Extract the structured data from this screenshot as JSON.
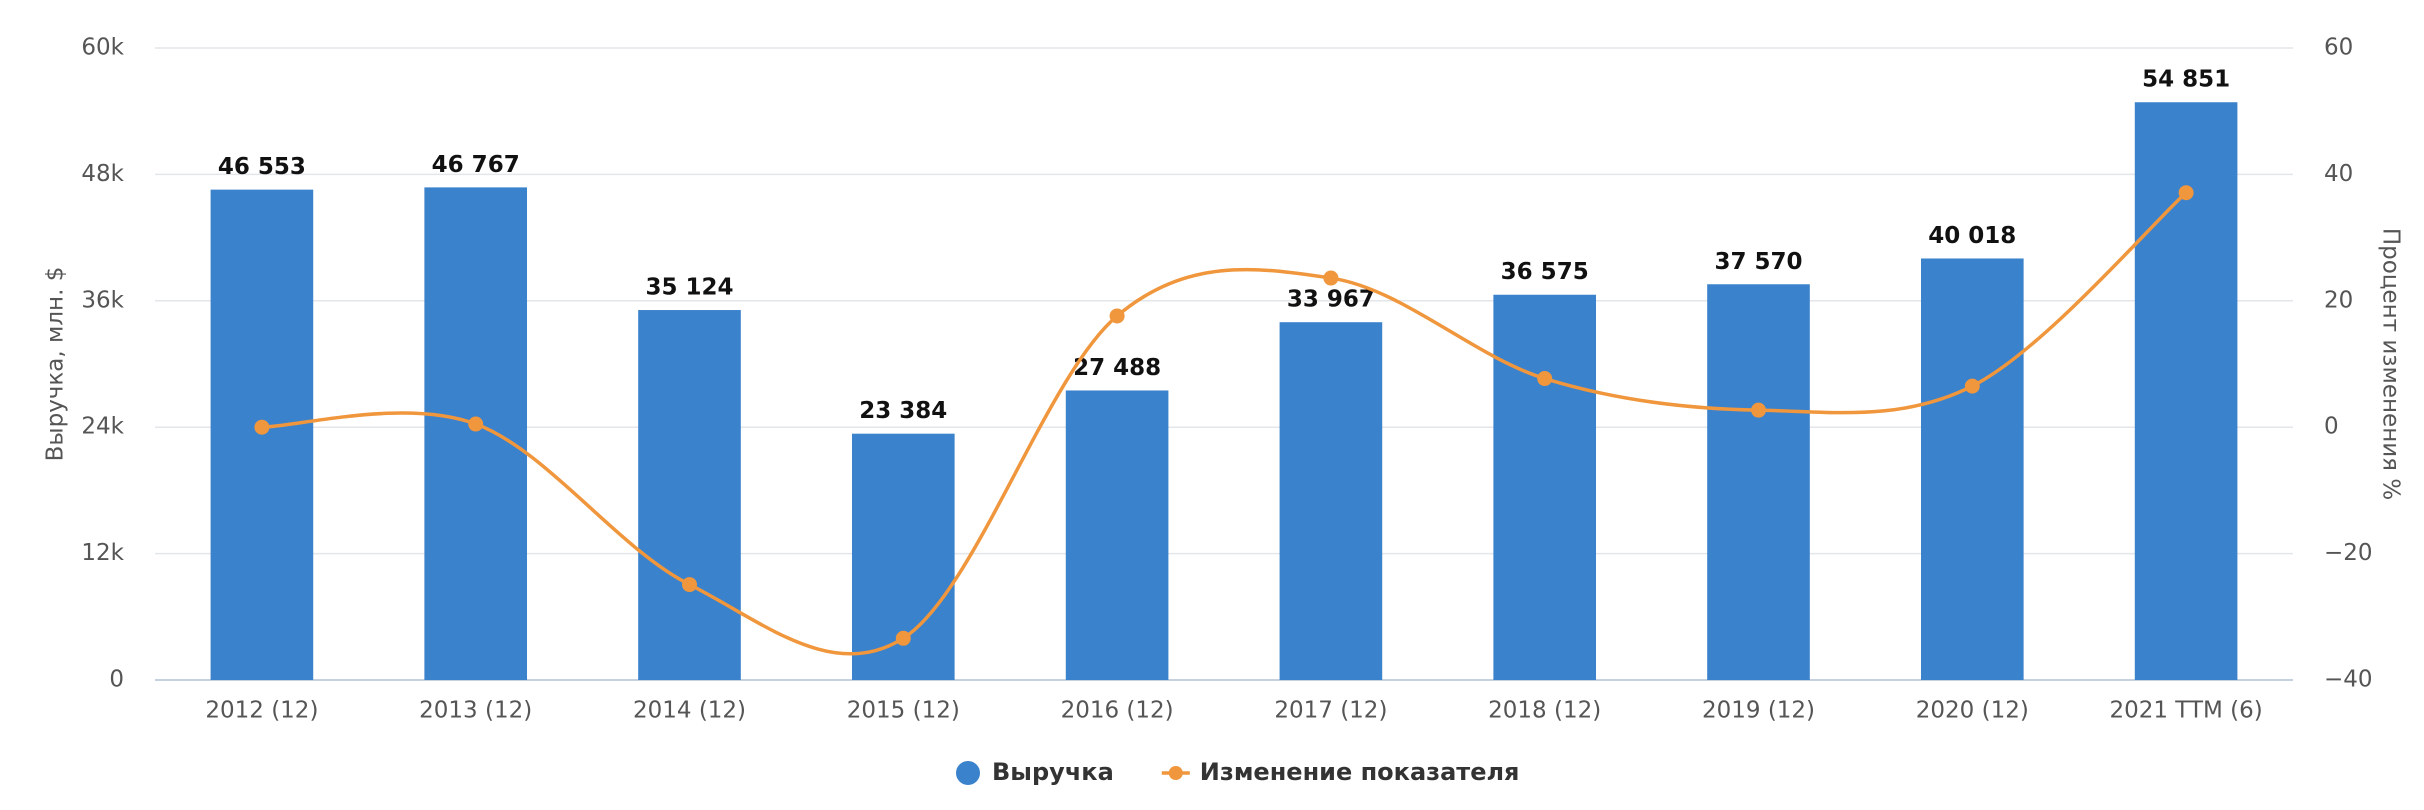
{
  "chart_data": {
    "type": "bar",
    "categories": [
      "2012 (12)",
      "2013 (12)",
      "2014 (12)",
      "2015 (12)",
      "2016 (12)",
      "2017 (12)",
      "2018 (12)",
      "2019 (12)",
      "2020 (12)",
      "2021 TTM (6)"
    ],
    "series": [
      {
        "name": "Выручка",
        "color": "#3b82cc",
        "values": [
          46553,
          46767,
          35124,
          23384,
          27488,
          33967,
          36575,
          37570,
          40018,
          54851
        ],
        "value_labels": [
          "46 553",
          "46 767",
          "35 124",
          "23 384",
          "27 488",
          "33 967",
          "36 575",
          "37 570",
          "40 018",
          "54 851"
        ]
      },
      {
        "name": "Изменение показателя",
        "color": "#f0963c",
        "type": "line",
        "axis": "y2",
        "values": [
          0,
          0.5,
          -24.9,
          -33.4,
          17.6,
          23.6,
          7.7,
          2.7,
          6.5,
          37.1
        ]
      }
    ],
    "ylabel": "Выручка, млн. $",
    "y2label": "Процент изменения %",
    "ylim": [
      0,
      60000
    ],
    "yticks": [
      0,
      {
        "value": 12000,
        "label": "12k"
      },
      {
        "value": 24000,
        "label": "24k"
      },
      {
        "value": 36000,
        "label": "36k"
      },
      {
        "value": 48000,
        "label": "48k"
      },
      {
        "value": 60000,
        "label": "60k"
      }
    ],
    "y2lim": [
      -40,
      60
    ],
    "y2ticks": [
      {
        "value": -40,
        "label": "−40"
      },
      {
        "value": -20,
        "label": "−20"
      },
      0,
      20,
      40,
      60
    ],
    "grid": true,
    "legend": "bottom"
  }
}
